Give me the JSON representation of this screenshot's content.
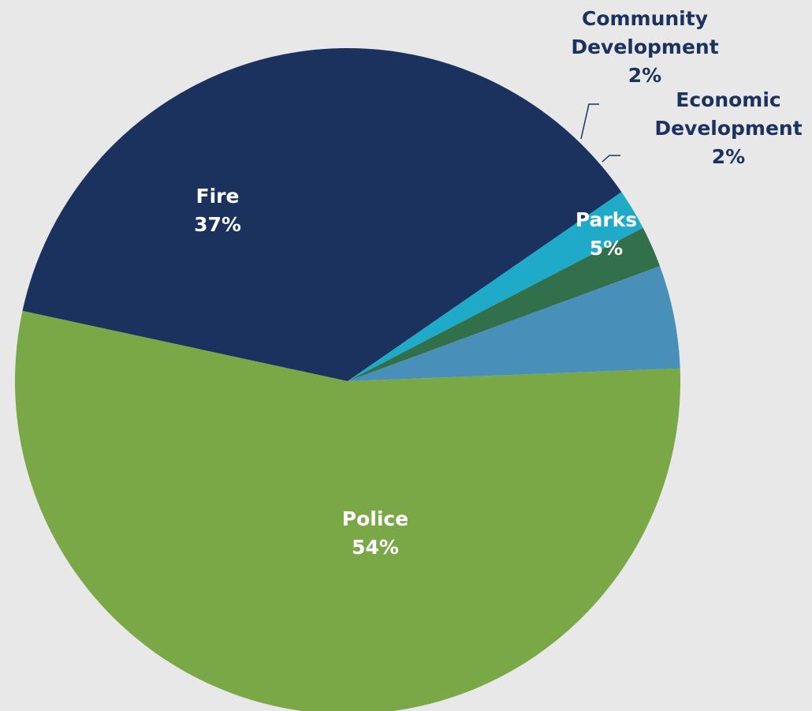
{
  "chart_data": {
    "type": "pie",
    "slices": [
      {
        "label": "Police",
        "value_text": "54%",
        "value": 54,
        "color": "#7ba846",
        "label_color": "#ffffff"
      },
      {
        "label": "Fire",
        "value_text": "37%",
        "value": 37,
        "color": "#1b325f",
        "label_color": "#ffffff"
      },
      {
        "label": "Community Development",
        "label_lines": [
          "Community",
          "Development"
        ],
        "value_text": "2%",
        "value": 2,
        "color": "#1eaac8",
        "label_color": "#1b325f"
      },
      {
        "label": "Economic Development",
        "label_lines": [
          "Economic",
          "Development"
        ],
        "value_text": "2%",
        "value": 2,
        "color": "#31704a",
        "label_color": "#1b325f"
      },
      {
        "label": "Parks",
        "value_text": "5%",
        "value": 5,
        "color": "#4890b9",
        "label_color": "#ffffff"
      }
    ],
    "title": "",
    "legend": "none",
    "background": "#e8e8e8"
  }
}
